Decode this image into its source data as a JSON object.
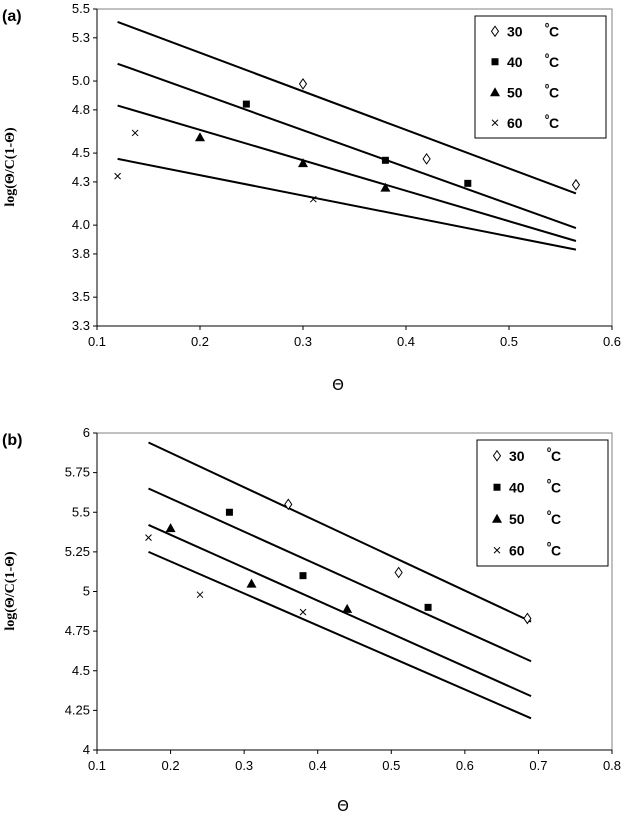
{
  "chart_data": [
    {
      "panel_label": "(a)",
      "type": "scatter",
      "xlabel": "Θ",
      "ylabel": "log(Θ/C(1-Θ)",
      "xlim": [
        0.1,
        0.6
      ],
      "ylim": [
        3.3,
        5.5
      ],
      "xticks": [
        "0.1",
        "0.2",
        "0.3",
        "0.4",
        "0.5",
        "0.6"
      ],
      "yticks": [
        "3.3",
        "3.5",
        "3.8",
        "4.0",
        "4.3",
        "4.5",
        "4.8",
        "5.0",
        "5.3",
        "5.5"
      ],
      "legend_position": "top-right",
      "series": [
        {
          "name": "30",
          "unit": "⁰C",
          "marker": "diamond",
          "points": [
            [
              0.3,
              4.98
            ],
            [
              0.42,
              4.46
            ],
            [
              0.565,
              4.28
            ]
          ],
          "fit": [
            [
              0.12,
              5.41
            ],
            [
              0.565,
              4.22
            ]
          ]
        },
        {
          "name": "40",
          "unit": "⁰C",
          "marker": "square",
          "points": [
            [
              0.245,
              4.84
            ],
            [
              0.38,
              4.45
            ],
            [
              0.46,
              4.29
            ]
          ],
          "fit": [
            [
              0.12,
              5.12
            ],
            [
              0.565,
              3.98
            ]
          ]
        },
        {
          "name": "50",
          "unit": "⁰C",
          "marker": "triangle",
          "points": [
            [
              0.2,
              4.61
            ],
            [
              0.3,
              4.43
            ],
            [
              0.38,
              4.26
            ]
          ],
          "fit": [
            [
              0.12,
              4.83
            ],
            [
              0.565,
              3.89
            ]
          ]
        },
        {
          "name": "60",
          "unit": "⁰C",
          "marker": "x",
          "points": [
            [
              0.12,
              4.34
            ],
            [
              0.137,
              4.64
            ],
            [
              0.31,
              4.18
            ]
          ],
          "fit": [
            [
              0.12,
              4.46
            ],
            [
              0.565,
              3.83
            ]
          ]
        }
      ]
    },
    {
      "panel_label": "(b)",
      "type": "scatter",
      "xlabel": "Θ",
      "ylabel": "log(Θ/C(1-Θ)",
      "xlim": [
        0.1,
        0.8
      ],
      "ylim": [
        4,
        6
      ],
      "xticks": [
        "0.1",
        "0.2",
        "0.3",
        "0.4",
        "0.5",
        "0.6",
        "0.7",
        "0.8"
      ],
      "yticks": [
        "4",
        "4.25",
        "4.5",
        "4.75",
        "5",
        "5.25",
        "5.5",
        "5.75",
        "6"
      ],
      "legend_position": "top-right",
      "series": [
        {
          "name": "30",
          "unit": "⁰C",
          "marker": "diamond",
          "points": [
            [
              0.36,
              5.55
            ],
            [
              0.51,
              5.12
            ],
            [
              0.685,
              4.83
            ]
          ],
          "fit": [
            [
              0.17,
              5.94
            ],
            [
              0.69,
              4.81
            ]
          ]
        },
        {
          "name": "40",
          "unit": "⁰C",
          "marker": "square",
          "points": [
            [
              0.28,
              5.5
            ],
            [
              0.38,
              5.1
            ],
            [
              0.55,
              4.9
            ]
          ],
          "fit": [
            [
              0.17,
              5.65
            ],
            [
              0.69,
              4.56
            ]
          ]
        },
        {
          "name": "50",
          "unit": "⁰C",
          "marker": "triangle",
          "points": [
            [
              0.2,
              5.4
            ],
            [
              0.31,
              5.05
            ],
            [
              0.44,
              4.89
            ]
          ],
          "fit": [
            [
              0.17,
              5.42
            ],
            [
              0.69,
              4.34
            ]
          ]
        },
        {
          "name": "60",
          "unit": "⁰C",
          "marker": "x",
          "points": [
            [
              0.17,
              5.34
            ],
            [
              0.24,
              4.98
            ],
            [
              0.38,
              4.87
            ]
          ],
          "fit": [
            [
              0.17,
              5.25
            ],
            [
              0.69,
              4.2
            ]
          ]
        }
      ]
    }
  ]
}
